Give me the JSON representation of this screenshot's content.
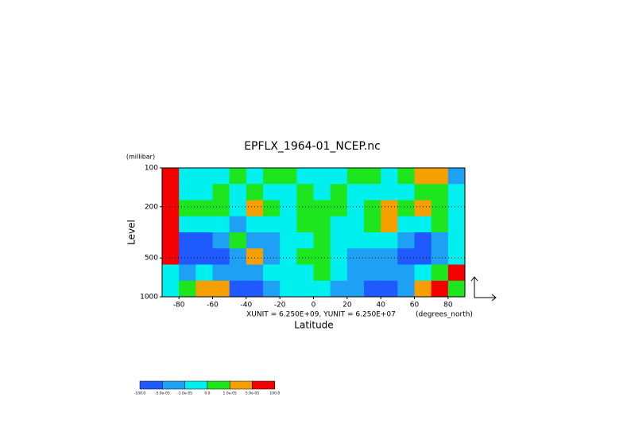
{
  "chart_data": {
    "type": "contour",
    "title": "EPFLX_1964-01_NCEP.nc",
    "y_units": "(millibar)",
    "x_units": "(degrees_north)",
    "xlabel": "Latitude",
    "ylabel": "Level",
    "annotation": "XUNIT = 6.250E+09, YUNIT = 6.250E+07",
    "xlim": [
      -90,
      90
    ],
    "xticks": [
      -80,
      -60,
      -40,
      -20,
      0,
      20,
      40,
      60,
      80
    ],
    "ylim": [
      1000,
      100
    ],
    "yticks": [
      100,
      200,
      500,
      1000
    ],
    "ylog": true,
    "grid": true,
    "field": [
      [
        5,
        2,
        2,
        2,
        3,
        2,
        3,
        3,
        2,
        2,
        2,
        3,
        3,
        2,
        3,
        4,
        4,
        1
      ],
      [
        5,
        2,
        2,
        3,
        2,
        3,
        2,
        2,
        3,
        2,
        3,
        2,
        2,
        2,
        2,
        3,
        3,
        2
      ],
      [
        5,
        3,
        3,
        3,
        2,
        4,
        3,
        2,
        3,
        3,
        3,
        2,
        3,
        4,
        3,
        4,
        3,
        2
      ],
      [
        5,
        2,
        2,
        2,
        1,
        2,
        2,
        2,
        3,
        3,
        2,
        2,
        3,
        4,
        2,
        2,
        3,
        2
      ],
      [
        5,
        0,
        0,
        1,
        3,
        1,
        1,
        2,
        2,
        3,
        2,
        2,
        2,
        2,
        1,
        0,
        1,
        2
      ],
      [
        5,
        0,
        0,
        0,
        1,
        4,
        1,
        2,
        3,
        3,
        2,
        1,
        1,
        1,
        0,
        0,
        1,
        2
      ],
      [
        2,
        1,
        2,
        1,
        1,
        1,
        2,
        2,
        2,
        3,
        2,
        1,
        1,
        1,
        1,
        2,
        3,
        5
      ],
      [
        2,
        3,
        4,
        4,
        0,
        0,
        1,
        2,
        2,
        2,
        1,
        1,
        0,
        0,
        1,
        4,
        5,
        3
      ]
    ],
    "colorbar": {
      "colors": [
        "#1e5aff",
        "#1ea0f5",
        "#00f0f0",
        "#1ee61e",
        "#f5a000",
        "#f50000"
      ],
      "ticks": [
        {
          "value": -100,
          "label": "-100.0"
        },
        {
          "value": -5e-05,
          "label": "-5.0e-05"
        },
        {
          "value": -1e-05,
          "label": "-1.0e-05"
        },
        {
          "value": 0,
          "label": "0.0"
        },
        {
          "value": 1e-05,
          "label": "1.0e-05"
        },
        {
          "value": 5e-05,
          "label": "5.0e-05"
        },
        {
          "value": 100,
          "label": "100.0"
        }
      ]
    }
  }
}
